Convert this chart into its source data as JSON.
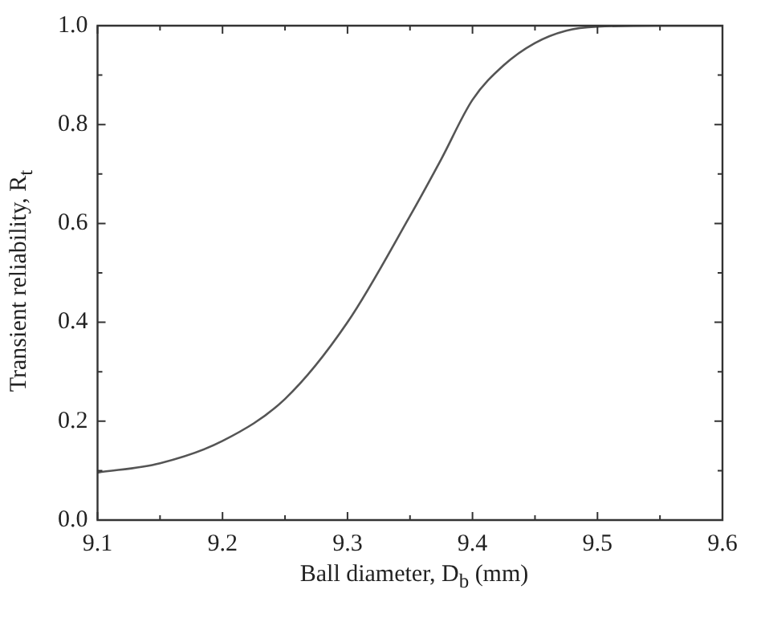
{
  "chart_data": {
    "type": "line",
    "xlabel": "Ball diameter, D$_{b}$ (mm)",
    "ylabel": "Transient reliability, R$_{t}$",
    "x": [
      9.1,
      9.15,
      9.2,
      9.25,
      9.3,
      9.35,
      9.375,
      9.4,
      9.425,
      9.45,
      9.475,
      9.5,
      9.55,
      9.6
    ],
    "series": [
      {
        "color": "#555555",
        "values": [
          0.096,
          0.115,
          0.16,
          0.245,
          0.4,
          0.615,
          0.73,
          0.85,
          0.92,
          0.965,
          0.99,
          0.998,
          1.0,
          1.0
        ]
      }
    ],
    "xlim": [
      9.1,
      9.6
    ],
    "xticks": [
      9.1,
      9.2,
      9.3,
      9.4,
      9.5,
      9.6
    ],
    "ylim": [
      0,
      1.0
    ],
    "yticks": [
      {
        "value": 0,
        "label": "0.0"
      },
      {
        "value": 0.2,
        "label": "0.2"
      },
      {
        "value": 0.4,
        "label": "0.4"
      },
      {
        "value": 0.6,
        "label": "0.6"
      },
      {
        "value": 0.8,
        "label": "0.8"
      },
      {
        "value": 1.0,
        "label": "1.0"
      }
    ],
    "grid": false,
    "legend": false,
    "marker": "none",
    "line_style": "solid"
  }
}
